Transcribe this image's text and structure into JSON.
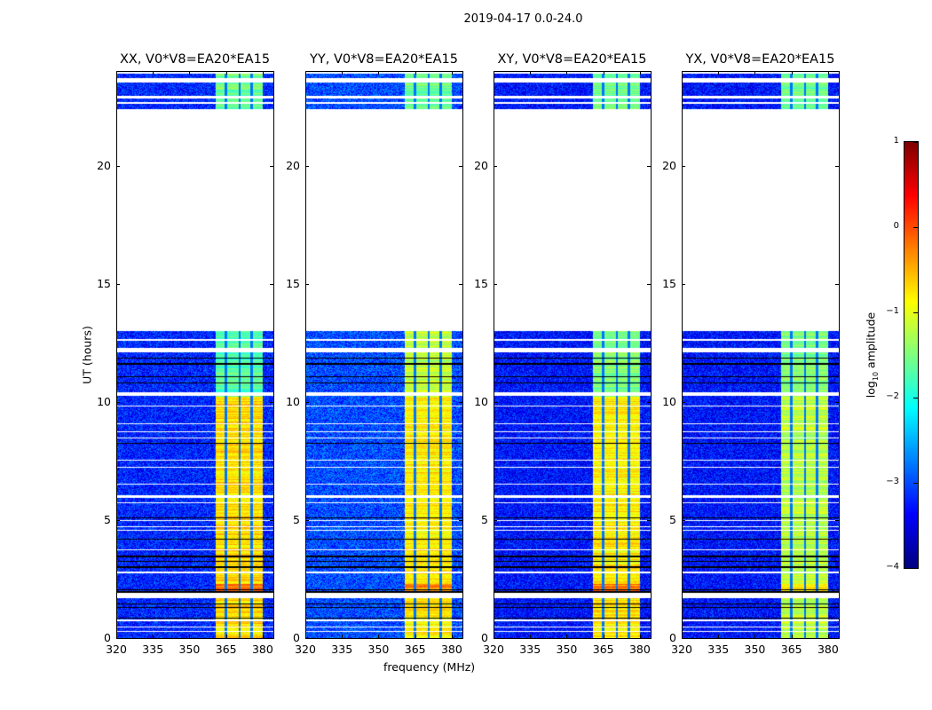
{
  "chart_data": {
    "type": "heatmap",
    "title": "2019-04-17 0.0-24.0",
    "xlabel": "frequency (MHz)",
    "ylabel": "UT (hours)",
    "xlim": [
      320,
      384.4
    ],
    "ylim": [
      0,
      24
    ],
    "xticks": [
      "320",
      "335",
      "350",
      "365",
      "380"
    ],
    "xtick_values": [
      320,
      335,
      350,
      365,
      380
    ],
    "yticks": [
      "0",
      "5",
      "10",
      "15",
      "20"
    ],
    "ytick_values": [
      0,
      5,
      10,
      15,
      20
    ],
    "panels": [
      {
        "title": "XX, V0*V8=EA20*EA15",
        "band_level_low": -0.7,
        "band_level_mid": -1.7,
        "base": -3.2
      },
      {
        "title": "YY, V0*V8=EA20*EA15",
        "band_level_low": -0.8,
        "band_level_mid": -1.2,
        "base": -3.0
      },
      {
        "title": "XY, V0*V8=EA20*EA15",
        "band_level_low": -0.8,
        "band_level_mid": -1.5,
        "base": -3.3
      },
      {
        "title": "YX, V0*V8=EA20*EA15",
        "band_level_low": -1.2,
        "band_level_mid": -1.5,
        "base": -3.3
      }
    ],
    "band_MHz": [
      360.7,
      380
    ],
    "band_dips_MHz": [
      365,
      370.5,
      375.5
    ],
    "no_data_hours": [
      [
        13.0,
        22.4
      ],
      [
        23.5,
        23.7
      ],
      [
        22.6,
        22.7
      ],
      [
        22.85,
        22.95
      ],
      [
        12.1,
        12.3
      ],
      [
        10.25,
        10.4
      ],
      [
        12.6,
        12.65
      ],
      [
        9.8,
        9.85
      ],
      [
        9.05,
        9.1
      ],
      [
        8.7,
        8.75
      ],
      [
        8.45,
        8.5
      ],
      [
        7.5,
        7.55
      ],
      [
        7.2,
        7.25
      ],
      [
        6.5,
        6.55
      ],
      [
        5.95,
        6.05
      ],
      [
        5.7,
        5.75
      ],
      [
        4.95,
        5.0
      ],
      [
        4.7,
        4.75
      ],
      [
        4.55,
        4.6
      ],
      [
        3.7,
        3.75
      ],
      [
        2.75,
        2.8
      ],
      [
        1.7,
        1.9
      ],
      [
        0.7,
        0.8
      ],
      [
        0.25,
        0.3
      ],
      [
        0.45,
        0.5
      ],
      [
        23.9,
        23.95
      ]
    ],
    "zero_rows_hours": [
      11.85,
      11.6,
      11.05,
      10.8,
      8.25,
      5.1,
      4.2,
      3.45,
      3.25,
      3.0,
      2.05,
      1.95,
      1.45,
      1.3,
      0.85
    ],
    "colorbar": {
      "label": "log10 amplitude",
      "label_main": "log",
      "label_sub": "10",
      "label_rest": " amplitude",
      "range": [
        -4,
        1
      ],
      "ticks": [
        "1",
        "0",
        "−1",
        "−2",
        "−3",
        "−4"
      ],
      "tick_values": [
        1,
        0,
        -1,
        -2,
        -3,
        -4
      ],
      "colormap": "jet"
    }
  }
}
